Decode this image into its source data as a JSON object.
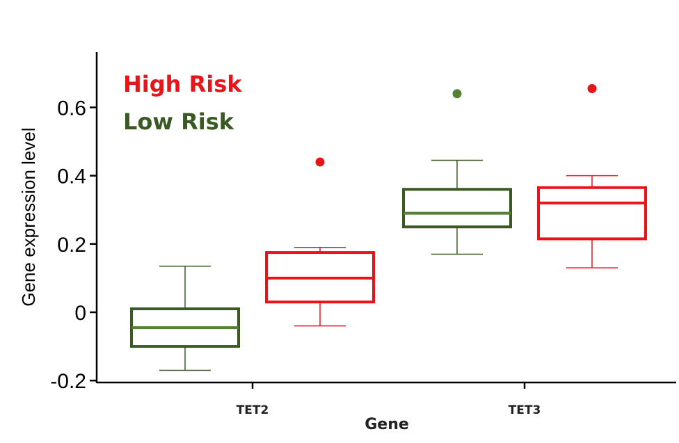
{
  "chart_data": {
    "type": "boxplot",
    "xlabel": "Gene",
    "ylabel": "Gene expression level",
    "ylim": [
      -0.2,
      0.75
    ],
    "yticks": [
      -0.2,
      0,
      0.2,
      0.4,
      0.6
    ],
    "ytick_labels": [
      "-0.2",
      "0",
      "0.2",
      "0.4",
      "0.6"
    ],
    "categories": [
      "TET2",
      "TET3"
    ],
    "legend": [
      {
        "label": "High Risk",
        "color": "#e8141a"
      },
      {
        "label": "Low Risk",
        "color": "#3b5a23"
      }
    ],
    "series": [
      {
        "name": "Low Risk",
        "color": "#3b5a23",
        "median_color": "#548235",
        "boxes": [
          {
            "category": "TET2",
            "whisker_low": -0.17,
            "q1": -0.1,
            "median": -0.045,
            "q3": 0.01,
            "whisker_high": 0.135,
            "outliers": []
          },
          {
            "category": "TET3",
            "whisker_low": 0.17,
            "q1": 0.25,
            "median": 0.29,
            "q3": 0.36,
            "whisker_high": 0.445,
            "outliers": [
              0.64
            ]
          }
        ]
      },
      {
        "name": "High Risk",
        "color": "#e8141a",
        "median_color": "#e8141a",
        "boxes": [
          {
            "category": "TET2",
            "whisker_low": -0.04,
            "q1": 0.03,
            "median": 0.1,
            "q3": 0.175,
            "whisker_high": 0.19,
            "outliers": [
              0.44
            ]
          },
          {
            "category": "TET3",
            "whisker_low": 0.13,
            "q1": 0.215,
            "median": 0.32,
            "q3": 0.365,
            "whisker_high": 0.4,
            "outliers": [
              0.655
            ]
          }
        ]
      }
    ]
  }
}
